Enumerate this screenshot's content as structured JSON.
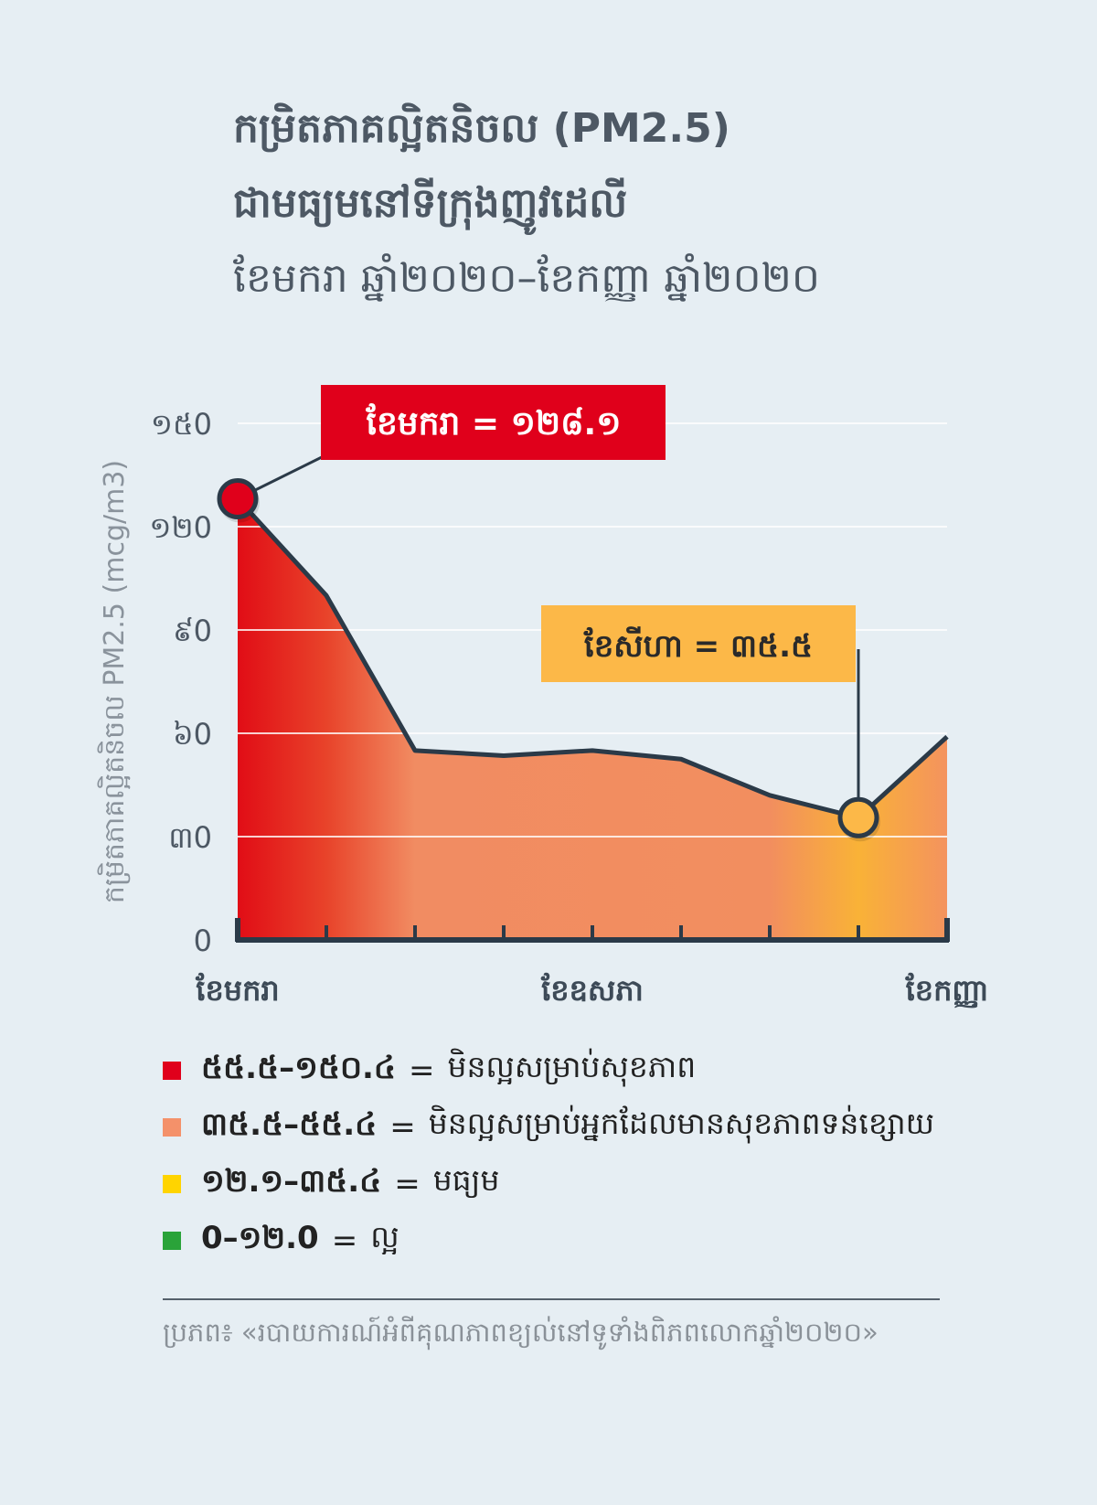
{
  "title": {
    "line1": "កម្រិតភាគល្អិតនិចល (PM2.5)",
    "line2": "ជាមធ្យមនៅទីក្រុងញូវដេលី",
    "line3": "ខែមករា ឆ្នាំ២០២០–ខែកញ្ញា ឆ្នាំ២០២០"
  },
  "chart_data": {
    "type": "area",
    "x": [
      1,
      2,
      3,
      4,
      5,
      6,
      7,
      8,
      9
    ],
    "x_tick_labels": [
      {
        "x": 1,
        "label": "ខែមករា"
      },
      {
        "x": 5,
        "label": "ខែឧសភា"
      },
      {
        "x": 9,
        "label": "ខែកញ្ញា"
      }
    ],
    "values": [
      128.1,
      100,
      55,
      53.5,
      55,
      52.5,
      42,
      35.5,
      59
    ],
    "ylabel": "កម្រិតភាគល្អិតនិចល PM2.5 (mcg/m3)",
    "ylim": [
      0,
      150
    ],
    "yticks": [
      0,
      30,
      60,
      90,
      120,
      150
    ],
    "ytick_labels": [
      "0",
      "៣0",
      "៦0",
      "៩0",
      "១២0",
      "១៥0"
    ],
    "grid": true,
    "annotations": [
      {
        "x": 1,
        "y": 128.1,
        "text": "ខែមករា = ១២៨.១",
        "color": "#e0001b",
        "text_color": "#ffffff"
      },
      {
        "x": 8,
        "y": 35.5,
        "text": "ខែសីហា = ៣៥.៥",
        "color": "#fcb848",
        "text_color": "#2a2a2a"
      }
    ],
    "fill_gradient": [
      {
        "x": 1,
        "color": "#e10d16"
      },
      {
        "x": 2,
        "color": "#e8432a"
      },
      {
        "x": 3,
        "color": "#f18c62"
      },
      {
        "x": 7,
        "color": "#f28e5f"
      },
      {
        "x": 8,
        "color": "#f9b237"
      },
      {
        "x": 9,
        "color": "#f4935e"
      }
    ],
    "line_color": "#2b3a48"
  },
  "legend": [
    {
      "range": "៥៥.៥–១៥០.៤",
      "eq": "=",
      "desc": "មិនល្អសម្រាប់សុខភាព",
      "color": "#e0001b"
    },
    {
      "range": "៣៥.៥–៥៥.៤",
      "eq": "=",
      "desc": "មិនល្អសម្រាប់អ្នកដែលមានសុខភាពទន់ខ្សោយ",
      "color": "#f4916a"
    },
    {
      "range": "១២.១–៣៥.៤",
      "eq": "=",
      "desc": "មធ្យម",
      "color": "#ffd400"
    },
    {
      "range": "0–១២.0",
      "eq": "=",
      "desc": "ល្អ",
      "color": "#2aa339"
    }
  ],
  "source": "ប្រភព៖ «របាយការណ៍អំពីគុណភាពខ្យល់នៅទូទាំងពិភពលោកឆ្នាំ២០២០»"
}
